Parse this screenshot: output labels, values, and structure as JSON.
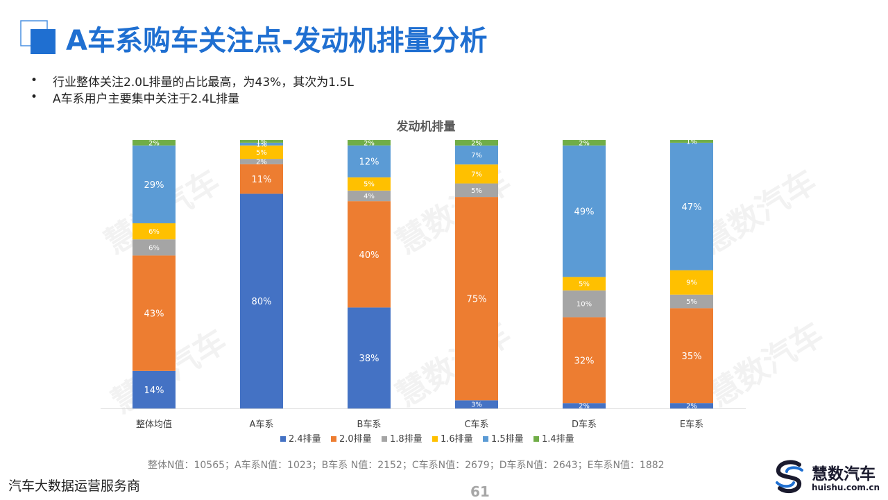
{
  "page": {
    "title": "A车系购车关注点-发动机排量分析",
    "bullets": [
      "行业整体关注2.0L排量的占比最高，为43%，其次为1.5L",
      "A车系用户主要集中关注于2.4L排量"
    ],
    "note": "整体N值：10565；A车系N值：1023；B车系 N值：2152；C车系N值：2679；D车系N值：2643；E车系N值：1882",
    "footer_left": "汽车大数据运营服务商",
    "page_number": "61",
    "logo": {
      "brand": "慧数汽车",
      "url": "huishu.com.cn",
      "icon": "huishu-s-logo-icon"
    },
    "watermark": "慧数汽车",
    "colors": {
      "title": "#1f6fd1",
      "deco_dark": "#1f6fd1",
      "deco_light": "#4a90e2"
    }
  },
  "chart_data": {
    "type": "bar",
    "stacked": true,
    "normalized": true,
    "title": "发动机排量",
    "categories": [
      "整体均值",
      "A车系",
      "B车系",
      "C车系",
      "D车系",
      "E车系"
    ],
    "series": [
      {
        "name": "2.4排量",
        "color": "#4472c4",
        "values": [
          14,
          80,
          38,
          3,
          2,
          2
        ],
        "labels": [
          "14%",
          "80%",
          "38%",
          "3%",
          "2%",
          "2%"
        ]
      },
      {
        "name": "2.0排量",
        "color": "#ed7d31",
        "values": [
          43,
          11,
          40,
          75,
          32,
          35
        ],
        "labels": [
          "43%",
          "11%",
          "40%",
          "75%",
          "32%",
          "35%"
        ]
      },
      {
        "name": "1.8排量",
        "color": "#a5a5a5",
        "values": [
          6,
          2,
          4,
          5,
          10,
          5
        ],
        "labels": [
          "6%",
          "2%",
          "4%",
          "5%",
          "10%",
          "5%"
        ]
      },
      {
        "name": "1.6排量",
        "color": "#ffc000",
        "values": [
          6,
          5,
          5,
          7,
          5,
          9
        ],
        "labels": [
          "6%",
          "5%",
          "5%",
          "7%",
          "5%",
          "9%"
        ]
      },
      {
        "name": "1.5排量",
        "color": "#5b9bd5",
        "values": [
          29,
          1,
          12,
          7,
          49,
          47
        ],
        "labels": [
          "29%",
          "1%",
          "12%",
          "7%",
          "49%",
          "47%"
        ]
      },
      {
        "name": "1.4排量",
        "color": "#70ad47",
        "values": [
          2,
          1,
          2,
          2,
          2,
          1
        ],
        "labels": [
          "2%",
          "1%",
          "2%",
          "2%",
          "2%",
          "1%"
        ]
      }
    ],
    "legend_position": "bottom",
    "grid": false
  }
}
